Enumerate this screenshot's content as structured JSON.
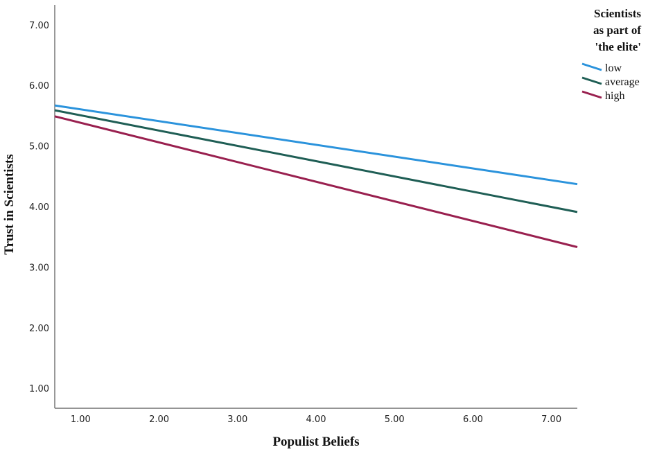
{
  "chart_data": {
    "type": "line",
    "title": "",
    "xlabel": "Populist Beliefs",
    "ylabel": "Trust in Scientists",
    "xlim": [
      0.67,
      7.33
    ],
    "ylim": [
      0.67,
      7.33
    ],
    "x_ticks": [
      "1.00",
      "2.00",
      "3.00",
      "4.00",
      "5.00",
      "6.00",
      "7.00"
    ],
    "x_tick_values": [
      1,
      2,
      3,
      4,
      5,
      6,
      7
    ],
    "y_ticks": [
      "1.00",
      "2.00",
      "3.00",
      "4.00",
      "5.00",
      "6.00",
      "7.00"
    ],
    "y_tick_values": [
      1,
      2,
      3,
      4,
      5,
      6,
      7
    ],
    "grid": false,
    "legend": {
      "title_lines": [
        "Scientists",
        "as part of",
        "'the elite'"
      ],
      "placement": "top-right, outside plot"
    },
    "series": [
      {
        "name": "low",
        "color": "#2b93dc",
        "x": [
          0.67,
          7.33
        ],
        "y": [
          5.67,
          4.37
        ]
      },
      {
        "name": "average",
        "color": "#1f5e55",
        "x": [
          0.67,
          7.33
        ],
        "y": [
          5.59,
          3.91
        ]
      },
      {
        "name": "high",
        "color": "#99204f",
        "x": [
          0.67,
          7.33
        ],
        "y": [
          5.49,
          3.33
        ]
      }
    ]
  }
}
